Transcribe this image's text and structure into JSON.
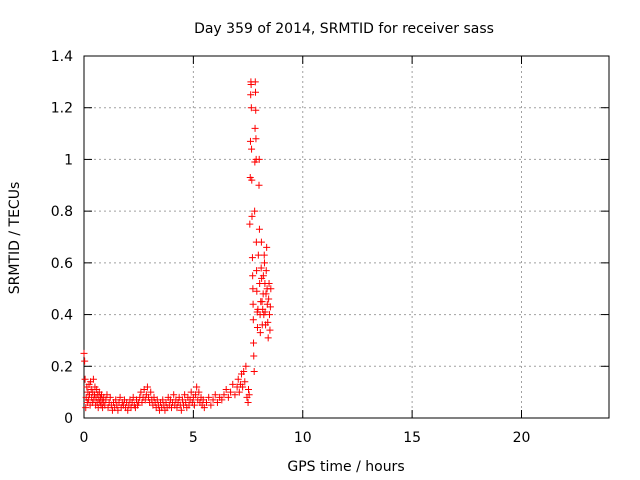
{
  "chart_data": {
    "type": "scatter",
    "title": "Day 359 of 2014, SRMTID for receiver sass",
    "xlabel": "GPS time / hours",
    "ylabel": "SRMTID / TECUs",
    "xlim": [
      0,
      24
    ],
    "ylim": [
      0,
      1.4
    ],
    "xticks": [
      0,
      5,
      10,
      15,
      20
    ],
    "yticks": [
      0,
      0.2,
      0.4,
      0.6,
      0.8,
      1,
      1.2,
      1.4
    ],
    "xtick_labels": [
      "0",
      "5",
      "10",
      "15",
      "20"
    ],
    "ytick_labels": [
      "0",
      "0.2",
      "0.4",
      "0.6",
      "0.8",
      "1",
      "1.2",
      "1.4"
    ],
    "grid": true,
    "series": [
      {
        "name": "sass",
        "marker": "+",
        "color": "#ff0000",
        "points": [
          [
            0.0,
            0.25
          ],
          [
            0.03,
            0.22
          ],
          [
            0.05,
            0.15
          ],
          [
            0.08,
            0.04
          ],
          [
            0.1,
            0.08
          ],
          [
            0.13,
            0.12
          ],
          [
            0.15,
            0.06
          ],
          [
            0.18,
            0.1
          ],
          [
            0.2,
            0.07
          ],
          [
            0.23,
            0.13
          ],
          [
            0.25,
            0.09
          ],
          [
            0.28,
            0.05
          ],
          [
            0.3,
            0.14
          ],
          [
            0.33,
            0.11
          ],
          [
            0.35,
            0.08
          ],
          [
            0.38,
            0.06
          ],
          [
            0.4,
            0.1
          ],
          [
            0.43,
            0.15
          ],
          [
            0.45,
            0.07
          ],
          [
            0.48,
            0.09
          ],
          [
            0.5,
            0.12
          ],
          [
            0.53,
            0.05
          ],
          [
            0.55,
            0.08
          ],
          [
            0.58,
            0.11
          ],
          [
            0.6,
            0.06
          ],
          [
            0.63,
            0.09
          ],
          [
            0.65,
            0.04
          ],
          [
            0.68,
            0.07
          ],
          [
            0.7,
            0.1
          ],
          [
            0.73,
            0.06
          ],
          [
            0.75,
            0.08
          ],
          [
            0.78,
            0.05
          ],
          [
            0.8,
            0.09
          ],
          [
            0.83,
            0.07
          ],
          [
            0.85,
            0.04
          ],
          [
            0.88,
            0.06
          ],
          [
            0.9,
            0.08
          ],
          [
            0.95,
            0.05
          ],
          [
            1.0,
            0.07
          ],
          [
            1.05,
            0.09
          ],
          [
            1.1,
            0.04
          ],
          [
            1.15,
            0.06
          ],
          [
            1.2,
            0.08
          ],
          [
            1.25,
            0.05
          ],
          [
            1.3,
            0.03
          ],
          [
            1.35,
            0.06
          ],
          [
            1.4,
            0.04
          ],
          [
            1.45,
            0.07
          ],
          [
            1.5,
            0.05
          ],
          [
            1.55,
            0.03
          ],
          [
            1.6,
            0.06
          ],
          [
            1.65,
            0.08
          ],
          [
            1.7,
            0.04
          ],
          [
            1.75,
            0.06
          ],
          [
            1.8,
            0.05
          ],
          [
            1.85,
            0.07
          ],
          [
            1.9,
            0.04
          ],
          [
            1.95,
            0.06
          ],
          [
            2.0,
            0.03
          ],
          [
            2.05,
            0.05
          ],
          [
            2.1,
            0.07
          ],
          [
            2.15,
            0.04
          ],
          [
            2.2,
            0.06
          ],
          [
            2.25,
            0.08
          ],
          [
            2.3,
            0.05
          ],
          [
            2.35,
            0.04
          ],
          [
            2.4,
            0.07
          ],
          [
            2.45,
            0.05
          ],
          [
            2.5,
            0.06
          ],
          [
            2.55,
            0.08
          ],
          [
            2.6,
            0.1
          ],
          [
            2.65,
            0.06
          ],
          [
            2.7,
            0.08
          ],
          [
            2.75,
            0.11
          ],
          [
            2.8,
            0.07
          ],
          [
            2.85,
            0.09
          ],
          [
            2.9,
            0.12
          ],
          [
            2.95,
            0.08
          ],
          [
            3.0,
            0.06
          ],
          [
            3.05,
            0.1
          ],
          [
            3.1,
            0.07
          ],
          [
            3.15,
            0.05
          ],
          [
            3.2,
            0.08
          ],
          [
            3.25,
            0.06
          ],
          [
            3.3,
            0.04
          ],
          [
            3.35,
            0.07
          ],
          [
            3.4,
            0.05
          ],
          [
            3.45,
            0.03
          ],
          [
            3.5,
            0.06
          ],
          [
            3.55,
            0.04
          ],
          [
            3.6,
            0.07
          ],
          [
            3.65,
            0.05
          ],
          [
            3.7,
            0.03
          ],
          [
            3.75,
            0.06
          ],
          [
            3.8,
            0.04
          ],
          [
            3.85,
            0.08
          ],
          [
            3.9,
            0.05
          ],
          [
            3.95,
            0.07
          ],
          [
            4.0,
            0.04
          ],
          [
            4.05,
            0.06
          ],
          [
            4.1,
            0.09
          ],
          [
            4.15,
            0.05
          ],
          [
            4.2,
            0.07
          ],
          [
            4.25,
            0.04
          ],
          [
            4.3,
            0.06
          ],
          [
            4.35,
            0.08
          ],
          [
            4.4,
            0.05
          ],
          [
            4.45,
            0.03
          ],
          [
            4.5,
            0.07
          ],
          [
            4.55,
            0.05
          ],
          [
            4.6,
            0.09
          ],
          [
            4.65,
            0.06
          ],
          [
            4.7,
            0.04
          ],
          [
            4.75,
            0.08
          ],
          [
            4.8,
            0.05
          ],
          [
            4.85,
            0.07
          ],
          [
            4.9,
            0.1
          ],
          [
            4.95,
            0.06
          ],
          [
            5.0,
            0.08
          ],
          [
            5.05,
            0.05
          ],
          [
            5.1,
            0.09
          ],
          [
            5.15,
            0.12
          ],
          [
            5.2,
            0.07
          ],
          [
            5.25,
            0.1
          ],
          [
            5.3,
            0.06
          ],
          [
            5.35,
            0.08
          ],
          [
            5.4,
            0.05
          ],
          [
            5.45,
            0.07
          ],
          [
            5.5,
            0.04
          ],
          [
            5.6,
            0.06
          ],
          [
            5.7,
            0.08
          ],
          [
            5.8,
            0.05
          ],
          [
            5.9,
            0.07
          ],
          [
            6.0,
            0.09
          ],
          [
            6.1,
            0.06
          ],
          [
            6.2,
            0.08
          ],
          [
            6.3,
            0.07
          ],
          [
            6.4,
            0.09
          ],
          [
            6.5,
            0.11
          ],
          [
            6.6,
            0.08
          ],
          [
            6.7,
            0.1
          ],
          [
            6.8,
            0.13
          ],
          [
            6.9,
            0.09
          ],
          [
            7.0,
            0.12
          ],
          [
            7.05,
            0.15
          ],
          [
            7.1,
            0.1
          ],
          [
            7.15,
            0.13
          ],
          [
            7.2,
            0.17
          ],
          [
            7.25,
            0.12
          ],
          [
            7.3,
            0.18
          ],
          [
            7.35,
            0.14
          ],
          [
            7.4,
            0.2
          ],
          [
            7.45,
            0.08
          ],
          [
            7.5,
            0.06
          ],
          [
            7.52,
            0.11
          ],
          [
            7.55,
            0.09
          ],
          [
            7.58,
            0.75
          ],
          [
            7.6,
            0.93
          ],
          [
            7.61,
            1.07
          ],
          [
            7.62,
            1.25
          ],
          [
            7.63,
            1.3
          ],
          [
            7.64,
            1.29
          ],
          [
            7.65,
            1.2
          ],
          [
            7.66,
            1.04
          ],
          [
            7.67,
            0.92
          ],
          [
            7.68,
            0.78
          ],
          [
            7.7,
            0.62
          ],
          [
            7.71,
            0.55
          ],
          [
            7.72,
            0.5
          ],
          [
            7.73,
            0.44
          ],
          [
            7.74,
            0.38
          ],
          [
            7.75,
            0.29
          ],
          [
            7.76,
            0.24
          ],
          [
            7.78,
            0.18
          ],
          [
            7.8,
            0.8
          ],
          [
            7.81,
            0.99
          ],
          [
            7.82,
            1.12
          ],
          [
            7.83,
            1.3
          ],
          [
            7.84,
            1.26
          ],
          [
            7.85,
            1.19
          ],
          [
            7.86,
            1.08
          ],
          [
            7.87,
            1.0
          ],
          [
            7.88,
            0.68
          ],
          [
            7.89,
            0.57
          ],
          [
            7.9,
            0.49
          ],
          [
            7.92,
            0.41
          ],
          [
            7.93,
            0.35
          ],
          [
            7.95,
            0.42
          ],
          [
            7.97,
            0.63
          ],
          [
            8.0,
            0.9
          ],
          [
            8.01,
            1.0
          ],
          [
            8.02,
            0.73
          ],
          [
            8.03,
            0.52
          ],
          [
            8.05,
            0.4
          ],
          [
            8.06,
            0.33
          ],
          [
            8.08,
            0.45
          ],
          [
            8.1,
            0.58
          ],
          [
            8.11,
            0.68
          ],
          [
            8.12,
            0.54
          ],
          [
            8.14,
            0.45
          ],
          [
            8.15,
            0.36
          ],
          [
            8.17,
            0.42
          ],
          [
            8.19,
            0.48
          ],
          [
            8.2,
            0.55
          ],
          [
            8.22,
            0.4
          ],
          [
            8.24,
            0.63
          ],
          [
            8.25,
            0.6
          ],
          [
            8.27,
            0.52
          ],
          [
            8.28,
            0.41
          ],
          [
            8.3,
            0.36
          ],
          [
            8.32,
            0.48
          ],
          [
            8.33,
            0.57
          ],
          [
            8.35,
            0.66
          ],
          [
            8.37,
            0.5
          ],
          [
            8.38,
            0.44
          ],
          [
            8.4,
            0.37
          ],
          [
            8.42,
            0.31
          ],
          [
            8.44,
            0.46
          ],
          [
            8.46,
            0.52
          ],
          [
            8.48,
            0.4
          ],
          [
            8.5,
            0.34
          ],
          [
            8.52,
            0.43
          ],
          [
            8.54,
            0.5
          ]
        ]
      }
    ]
  }
}
